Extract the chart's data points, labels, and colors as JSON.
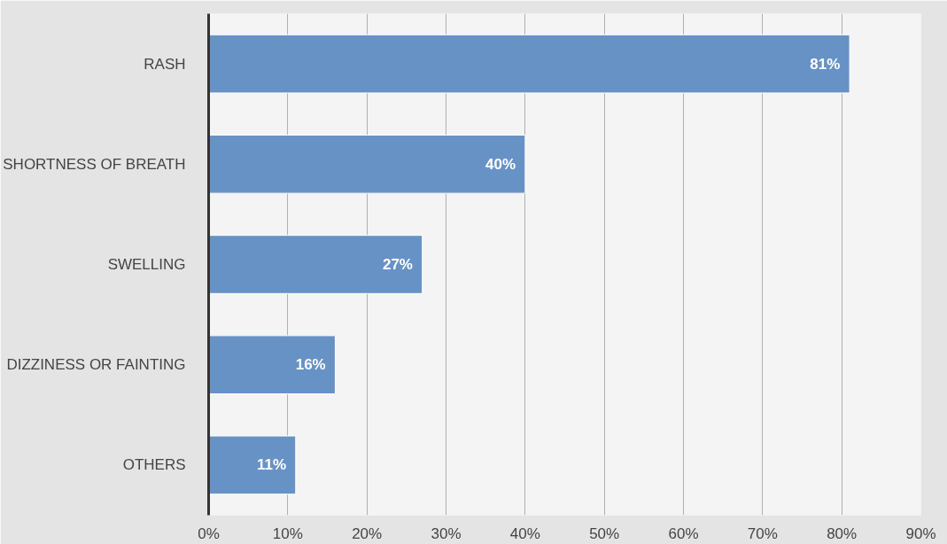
{
  "chart_data": {
    "type": "bar",
    "orientation": "horizontal",
    "categories": [
      "RASH",
      "SHORTNESS OF BREATH",
      "SWELLING",
      "DIZZINESS OR FAINTING",
      "OTHERS"
    ],
    "values": [
      81,
      40,
      27,
      16,
      11
    ],
    "value_labels": [
      "81%",
      "40%",
      "27%",
      "16%",
      "11%"
    ],
    "color": "#6792c6",
    "xlim": [
      0,
      90
    ],
    "xticks": [
      {
        "value": 0,
        "label": "0%"
      },
      {
        "value": 10,
        "label": "10%"
      },
      {
        "value": 20,
        "label": "20%"
      },
      {
        "value": 30,
        "label": "30%"
      },
      {
        "value": 40,
        "label": "40%"
      },
      {
        "value": 50,
        "label": "50%"
      },
      {
        "value": 60,
        "label": "60%"
      },
      {
        "value": 70,
        "label": "70%"
      },
      {
        "value": 80,
        "label": "80%"
      },
      {
        "value": 90,
        "label": "90%"
      }
    ],
    "grid": "x"
  }
}
